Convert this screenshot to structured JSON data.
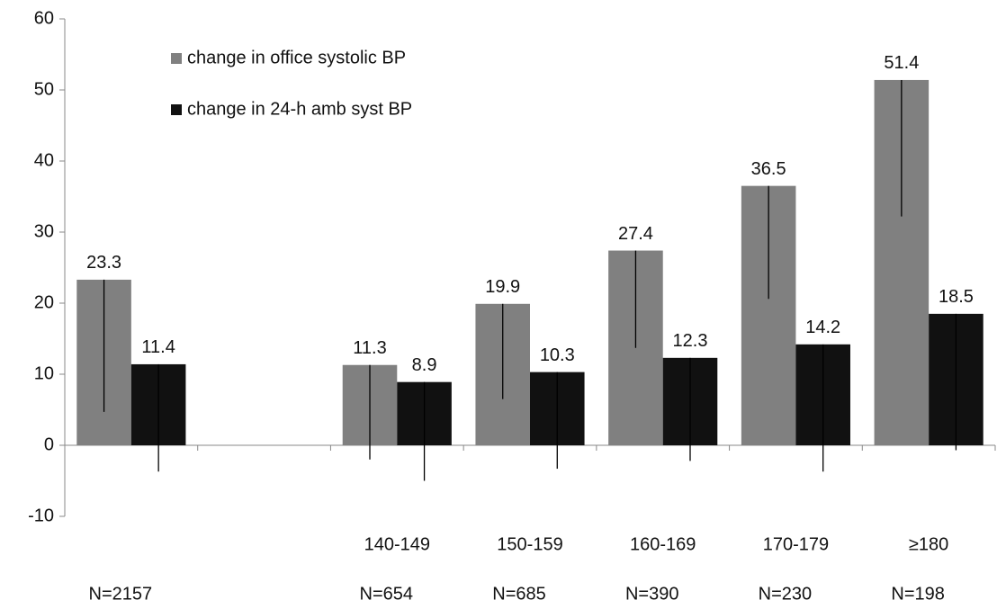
{
  "chart_data": {
    "type": "bar",
    "categories": [
      null,
      null,
      "140-149",
      "150-159",
      "160-169",
      "170-179",
      "≥180"
    ],
    "n_labels": [
      "N=2157",
      null,
      "N=654",
      "N=685",
      "N=390",
      "N=230",
      "N=198"
    ],
    "series": [
      {
        "name": "change in office systolic BP",
        "color": "#808080",
        "values": [
          23.3,
          null,
          11.3,
          19.9,
          27.4,
          36.5,
          51.4
        ],
        "errors": [
          18.6,
          null,
          13.3,
          13.4,
          13.7,
          15.9,
          19.2
        ]
      },
      {
        "name": "change in 24-h amb syst BP",
        "color": "#111111",
        "values": [
          11.4,
          null,
          8.9,
          10.3,
          12.3,
          14.2,
          18.5
        ],
        "errors": [
          15.1,
          null,
          13.9,
          13.6,
          14.5,
          17.9,
          19.2
        ]
      }
    ],
    "ylim": [
      -10,
      60
    ],
    "yticks": [
      -10,
      0,
      10,
      20,
      30,
      40,
      50,
      60
    ],
    "grid": false,
    "legend": "upper left"
  }
}
